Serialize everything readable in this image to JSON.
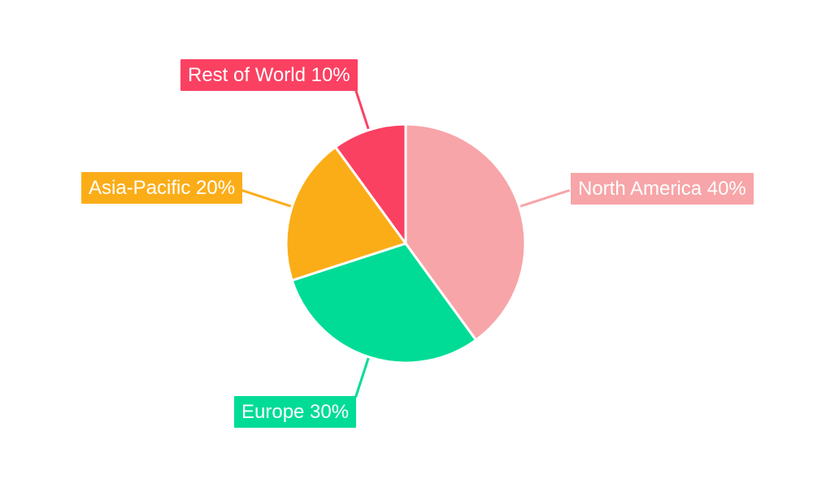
{
  "background_color": "#ffffff",
  "chart_data": {
    "type": "pie",
    "title": "",
    "start_angle": "top",
    "direction": "clockwise",
    "legend": "none",
    "slice_divider_color": "#ffffff",
    "label_text_color": "#ffffff",
    "labels": [
      "North America",
      "Europe",
      "Asia-Pacific",
      "Rest of World"
    ],
    "values": [
      40,
      30,
      20,
      10
    ],
    "slices": [
      {
        "label": "North America",
        "value": 40,
        "pct_text": "40%",
        "label_text": "North America 40%",
        "color": "#F7A5A8"
      },
      {
        "label": "Europe",
        "value": 30,
        "pct_text": "30%",
        "label_text": "Europe 30%",
        "color": "#00DC96"
      },
      {
        "label": "Asia-Pacific",
        "value": 20,
        "pct_text": "20%",
        "label_text": "Asia-Pacific 20%",
        "color": "#FBAD18"
      },
      {
        "label": "Rest of World",
        "value": 10,
        "pct_text": "10%",
        "label_text": "Rest of World 10%",
        "color": "#FB4162"
      }
    ]
  }
}
